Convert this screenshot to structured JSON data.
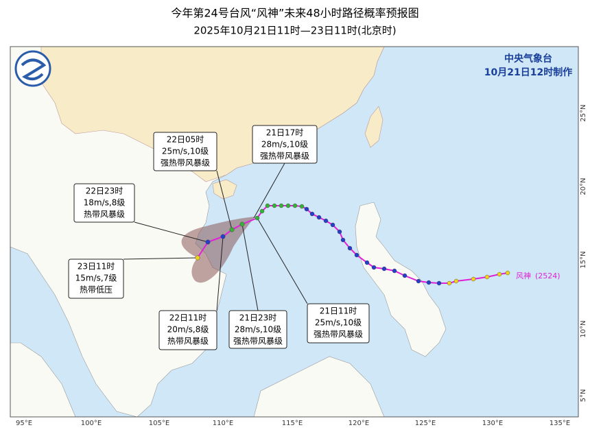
{
  "header": {
    "title": "今年第24号台风“风神”未来48小时路径概率预报图",
    "subtitle": "2025年10月21日11时—23日11时(北京时)"
  },
  "agency": {
    "name": "中央气象台",
    "issued": "10月21日12时制作"
  },
  "typhoon": {
    "name": "风神",
    "code": "(2524)"
  },
  "forecasts": [
    {
      "time": "21日17时",
      "wind": "28m/s,10级",
      "level": "强热带风暴级"
    },
    {
      "time": "22日05时",
      "wind": "25m/s,10级",
      "level": "强热带风暴级"
    },
    {
      "time": "22日23时",
      "wind": "18m/s,8级",
      "level": "热带风暴级"
    },
    {
      "time": "23日11时",
      "wind": "15m/s,7级",
      "level": "热带低压"
    },
    {
      "time": "22日11时",
      "wind": "20m/s,8级",
      "level": "热带风暴级"
    },
    {
      "time": "21日23时",
      "wind": "28m/s,10级",
      "level": "强热带风暴级"
    },
    {
      "time": "21日11时",
      "wind": "25m/s,10级",
      "level": "强热带风暴级"
    }
  ],
  "longitude_labels": [
    "95°E",
    "100°E",
    "105°E",
    "110°E",
    "115°E",
    "120°E",
    "125°E",
    "130°E",
    "135°E"
  ],
  "latitude_labels": [
    "25°N",
    "20°N",
    "15°N",
    "10°N",
    "5°N"
  ]
}
